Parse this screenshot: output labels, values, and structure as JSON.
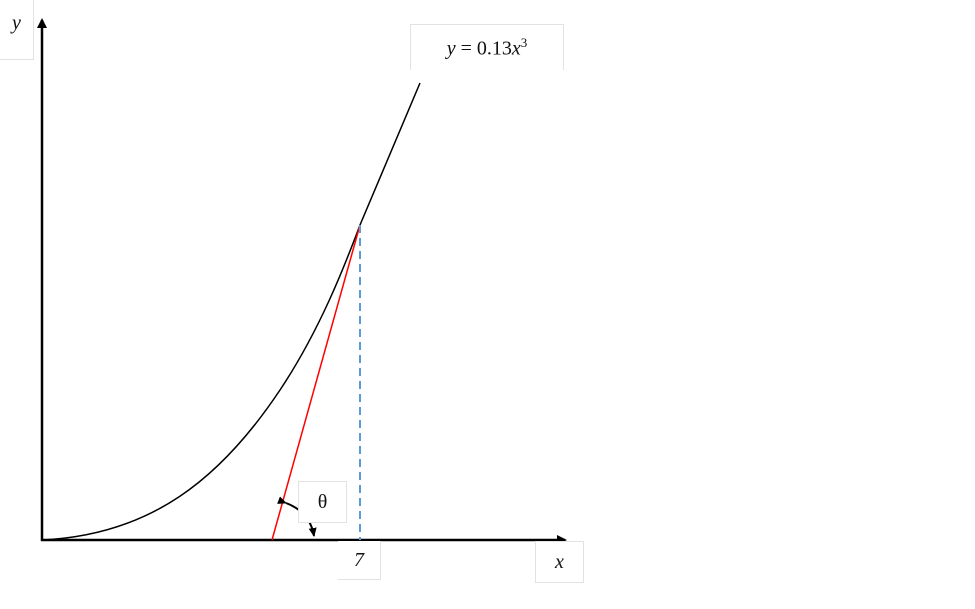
{
  "labels": {
    "y_axis": "y",
    "x_axis": "x",
    "equation_lhs": "y",
    "equation_eq": " = 0.13",
    "equation_var": "x",
    "equation_exp": "3",
    "x_tick": "7",
    "angle": "θ"
  },
  "colors": {
    "curve": "#000000",
    "tangent": "#ff0000",
    "dashed": "#5b9bd5",
    "axes": "#000000"
  }
}
